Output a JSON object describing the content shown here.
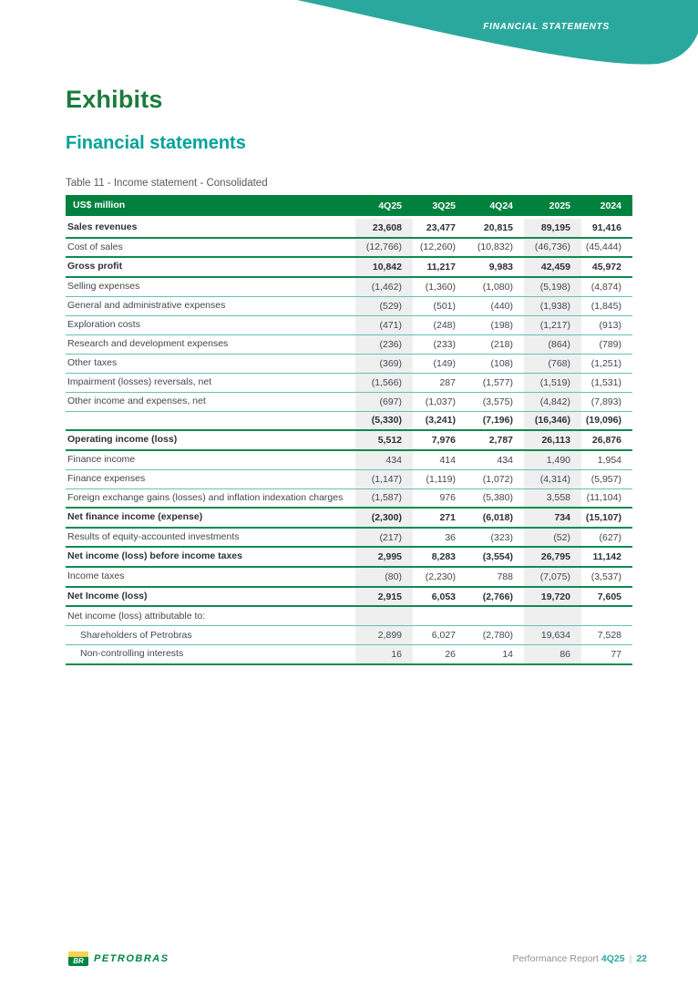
{
  "banner": {
    "label": "FINANCIAL STATEMENTS"
  },
  "page": {
    "title": "Exhibits",
    "section_title": "Financial statements",
    "table_caption": "Table 11 - Income statement - Consolidated"
  },
  "table": {
    "unit_label": "US$ million",
    "columns": [
      "4Q25",
      "3Q25",
      "4Q24",
      "2025",
      "2024"
    ],
    "shaded_columns": [
      0,
      3
    ],
    "rows": [
      {
        "label": "Sales revenues",
        "values": [
          "23,608",
          "23,477",
          "20,815",
          "89,195",
          "91,416"
        ],
        "bold": true,
        "indent": false,
        "border": "thick"
      },
      {
        "label": "Cost of sales",
        "values": [
          "(12,766)",
          "(12,260)",
          "(10,832)",
          "(46,736)",
          "(45,444)"
        ],
        "bold": false,
        "indent": false,
        "border": "thick"
      },
      {
        "label": "Gross profit",
        "values": [
          "10,842",
          "11,217",
          "9,983",
          "42,459",
          "45,972"
        ],
        "bold": true,
        "indent": false,
        "border": "thick"
      },
      {
        "label": "Selling expenses",
        "values": [
          "(1,462)",
          "(1,360)",
          "(1,080)",
          "(5,198)",
          "(4,874)"
        ],
        "bold": false,
        "indent": false,
        "border": "thin"
      },
      {
        "label": "General and administrative expenses",
        "values": [
          "(529)",
          "(501)",
          "(440)",
          "(1,938)",
          "(1,845)"
        ],
        "bold": false,
        "indent": false,
        "border": "thin"
      },
      {
        "label": "Exploration costs",
        "values": [
          "(471)",
          "(248)",
          "(198)",
          "(1,217)",
          "(913)"
        ],
        "bold": false,
        "indent": false,
        "border": "thin"
      },
      {
        "label": "Research and development expenses",
        "values": [
          "(236)",
          "(233)",
          "(218)",
          "(864)",
          "(789)"
        ],
        "bold": false,
        "indent": false,
        "border": "thin"
      },
      {
        "label": "Other taxes",
        "values": [
          "(369)",
          "(149)",
          "(108)",
          "(768)",
          "(1,251)"
        ],
        "bold": false,
        "indent": false,
        "border": "thin"
      },
      {
        "label": "Impairment (losses) reversals, net",
        "values": [
          "(1,566)",
          "287",
          "(1,577)",
          "(1,519)",
          "(1,531)"
        ],
        "bold": false,
        "indent": false,
        "border": "thin"
      },
      {
        "label": "Other income and expenses, net",
        "values": [
          "(697)",
          "(1,037)",
          "(3,575)",
          "(4,842)",
          "(7,893)"
        ],
        "bold": false,
        "indent": false,
        "border": "thin"
      },
      {
        "label": "",
        "values": [
          "(5,330)",
          "(3,241)",
          "(7,196)",
          "(16,346)",
          "(19,096)"
        ],
        "bold": true,
        "indent": false,
        "border": "thick"
      },
      {
        "label": "Operating income (loss)",
        "values": [
          "5,512",
          "7,976",
          "2,787",
          "26,113",
          "26,876"
        ],
        "bold": true,
        "indent": false,
        "border": "thick"
      },
      {
        "label": "Finance income",
        "values": [
          "434",
          "414",
          "434",
          "1,490",
          "1,954"
        ],
        "bold": false,
        "indent": false,
        "border": "thin"
      },
      {
        "label": "Finance expenses",
        "values": [
          "(1,147)",
          "(1,119)",
          "(1,072)",
          "(4,314)",
          "(5,957)"
        ],
        "bold": false,
        "indent": false,
        "border": "thin"
      },
      {
        "label": "Foreign exchange gains (losses) and inflation indexation charges",
        "values": [
          "(1,587)",
          "976",
          "(5,380)",
          "3,558",
          "(11,104)"
        ],
        "bold": false,
        "indent": false,
        "border": "thick"
      },
      {
        "label": "Net finance income (expense)",
        "values": [
          "(2,300)",
          "271",
          "(6,018)",
          "734",
          "(15,107)"
        ],
        "bold": true,
        "indent": false,
        "border": "thick"
      },
      {
        "label": "Results of equity-accounted investments",
        "values": [
          "(217)",
          "36",
          "(323)",
          "(52)",
          "(627)"
        ],
        "bold": false,
        "indent": false,
        "border": "thick"
      },
      {
        "label": "Net income (loss) before income taxes",
        "values": [
          "2,995",
          "8,283",
          "(3,554)",
          "26,795",
          "11,142"
        ],
        "bold": true,
        "indent": false,
        "border": "thick"
      },
      {
        "label": "Income taxes",
        "values": [
          "(80)",
          "(2,230)",
          "788",
          "(7,075)",
          "(3,537)"
        ],
        "bold": false,
        "indent": false,
        "border": "thick"
      },
      {
        "label": "Net Income (loss)",
        "values": [
          "2,915",
          "6,053",
          "(2,766)",
          "19,720",
          "7,605"
        ],
        "bold": true,
        "indent": false,
        "border": "thick"
      },
      {
        "label": "Net income (loss) attributable to:",
        "values": [
          "",
          "",
          "",
          "",
          ""
        ],
        "bold": false,
        "indent": false,
        "border": "thin"
      },
      {
        "label": "Shareholders of Petrobras",
        "values": [
          "2,899",
          "6,027",
          "(2,780)",
          "19,634",
          "7,528"
        ],
        "bold": false,
        "indent": true,
        "border": "thin"
      },
      {
        "label": "Non-controlling interests",
        "values": [
          "16",
          "26",
          "14",
          "86",
          "77"
        ],
        "bold": false,
        "indent": true,
        "border": "thick"
      }
    ]
  },
  "footer": {
    "logo_text": "BR",
    "brand": "PETROBRAS",
    "report_label": "Performance Report",
    "report_period": "4Q25",
    "separator": "|",
    "page_number": "22"
  },
  "colors": {
    "title-green": "#1B7B3C",
    "title-teal": "#00A29A",
    "banner-teal": "#2BA89E",
    "header-green": "#00813E",
    "thick-line": "#0E8B52",
    "thin-line": "#66C0B5",
    "shade": "#EFEFEF",
    "brand-green": "#008542",
    "logo-yellow": "#FFD24F"
  }
}
